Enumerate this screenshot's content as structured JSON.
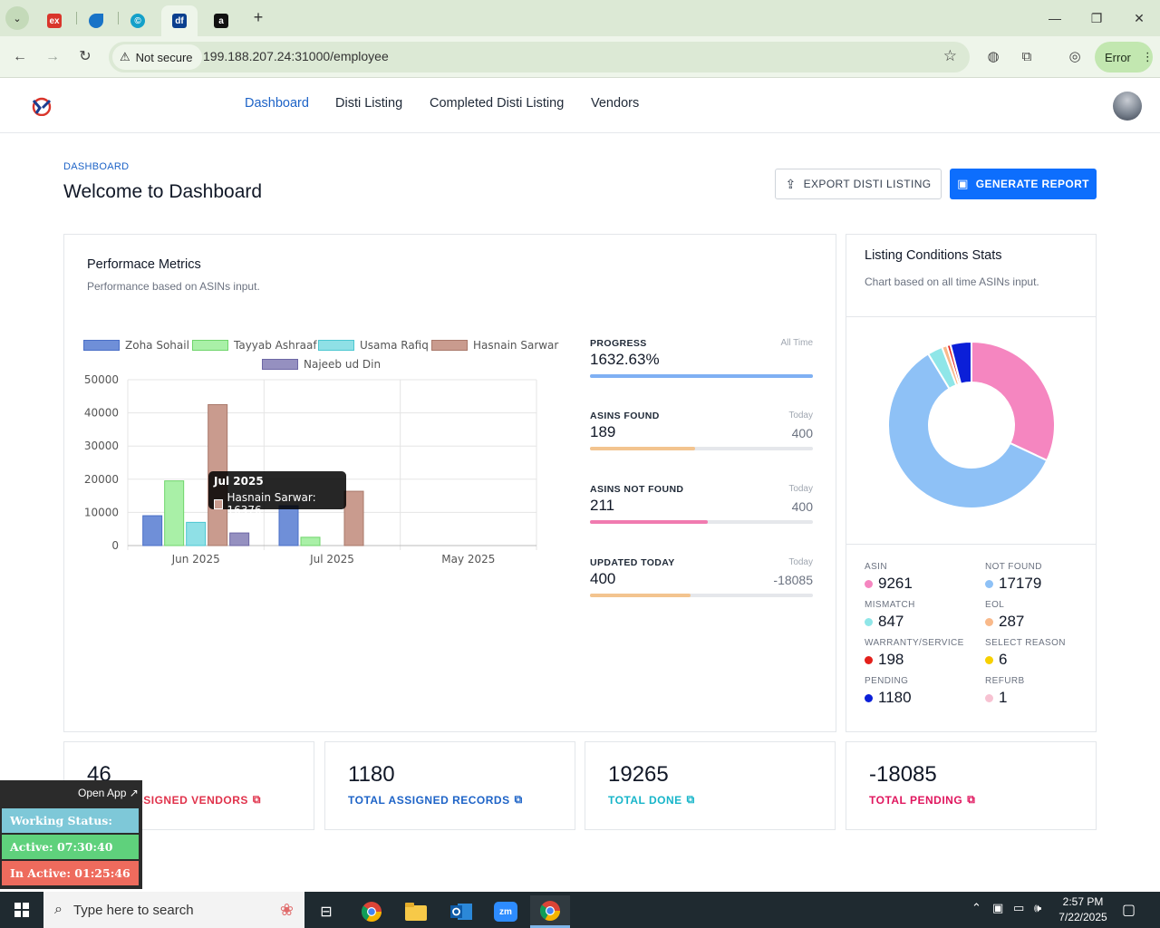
{
  "browser": {
    "tabs": [
      {
        "icon": "ex-favicon",
        "label": "ex",
        "color": "#d9352b"
      },
      {
        "icon": "app-favicon",
        "label": "",
        "color": "#1873c7"
      },
      {
        "icon": "c-favicon",
        "label": "©",
        "color": "#14a0c9"
      },
      {
        "icon": "df-favicon",
        "label": "df",
        "color": "#0b3f8f"
      },
      {
        "icon": "amazon-favicon",
        "label": "a",
        "color": "#111111"
      }
    ],
    "security_label": "Not secure",
    "url": "199.188.207.24:31000/employee",
    "profile_status": "Error"
  },
  "nav": {
    "links": [
      "Dashboard",
      "Disti Listing",
      "Completed Disti Listing",
      "Vendors"
    ],
    "active": "Dashboard"
  },
  "page": {
    "breadcrumb": "DASHBOARD",
    "title": "Welcome to Dashboard",
    "export_button": "EXPORT DISTI LISTING",
    "report_button": "GENERATE REPORT"
  },
  "performance": {
    "title": "Performace Metrics",
    "subtitle": "Performance based on ASINs input.",
    "metrics": [
      {
        "label": "PROGRESS",
        "hint": "All Time",
        "value": "1632.63%",
        "right": "",
        "fill": 1.0,
        "color": "#7fb0f3"
      },
      {
        "label": "ASINS FOUND",
        "hint": "Today",
        "value": "189",
        "right": "400",
        "fill": 0.47,
        "color": "#f3c48f"
      },
      {
        "label": "ASINS NOT FOUND",
        "hint": "Today",
        "value": "211",
        "right": "400",
        "fill": 0.53,
        "color": "#f07bb0"
      },
      {
        "label": "UPDATED TODAY",
        "hint": "Today",
        "value": "400",
        "right": "-18085",
        "fill": 0.45,
        "color": "#f3c48f"
      }
    ]
  },
  "chart_data": {
    "type": "bar",
    "categories": [
      "Jun 2025",
      "Jul 2025",
      "May 2025"
    ],
    "ylim": [
      0,
      50000
    ],
    "yticks": [
      0,
      10000,
      20000,
      30000,
      40000,
      50000
    ],
    "series": [
      {
        "name": "Zoha Sohail",
        "values": [
          9000,
          12000,
          0
        ],
        "color": "#6f8fd8",
        "border": "#4a6fc7"
      },
      {
        "name": "Tayyab Ashraaf",
        "values": [
          19500,
          2500,
          0
        ],
        "color": "#a9f0a7",
        "border": "#6fd56b"
      },
      {
        "name": "Usama Rafiq",
        "values": [
          7000,
          0,
          0
        ],
        "color": "#8fe0e6",
        "border": "#4cc7d1"
      },
      {
        "name": "Hasnain Sarwar",
        "values": [
          42500,
          16376,
          0
        ],
        "color": "#c99b8e",
        "border": "#a9786a"
      },
      {
        "name": "Najeeb ud Din",
        "values": [
          3800,
          0,
          0
        ],
        "color": "#9590c0",
        "border": "#6d67a5"
      }
    ],
    "tooltip": {
      "title": "Jul 2025",
      "label": "Hasnain Sarwar: 16376"
    }
  },
  "listing_stats": {
    "title": "Listing Conditions Stats",
    "subtitle": "Chart based on all time ASINs input.",
    "donut": [
      {
        "label": "ASIN",
        "value": 9261,
        "color": "#f586c0"
      },
      {
        "label": "NOT FOUND",
        "value": 17179,
        "color": "#8ec1f6"
      },
      {
        "label": "MISMATCH",
        "value": 847,
        "color": "#8fe6e8"
      },
      {
        "label": "EOL",
        "value": 287,
        "color": "#f9b98a"
      },
      {
        "label": "WARRANTY/SERVICE",
        "value": 198,
        "color": "#e3201b"
      },
      {
        "label": "SELECT REASON",
        "value": 6,
        "color": "#f7d000"
      },
      {
        "label": "PENDING",
        "value": 1180,
        "color": "#0b1fd8"
      },
      {
        "label": "REFURB",
        "value": 1,
        "color": "#f7c2d2"
      }
    ]
  },
  "kpis": [
    {
      "value": "46",
      "label": "TOTAL ASSIGNED VENDORS",
      "color": "#e0324b"
    },
    {
      "value": "1180",
      "label": "TOTAL ASSIGNED RECORDS",
      "color": "#1d63c7"
    },
    {
      "value": "19265",
      "label": "TOTAL DONE",
      "color": "#17b5c9"
    },
    {
      "value": "-18085",
      "label": "TOTAL PENDING",
      "color": "#e0165e"
    }
  ],
  "overlay": {
    "open_app": "Open App ↗",
    "working_status": "Working Status: Active",
    "active": "Active: 07:30:40",
    "inactive": "In Active: 01:25:46"
  },
  "taskbar": {
    "search_placeholder": "Type here to search",
    "time": "2:57 PM",
    "date": "7/22/2025"
  }
}
